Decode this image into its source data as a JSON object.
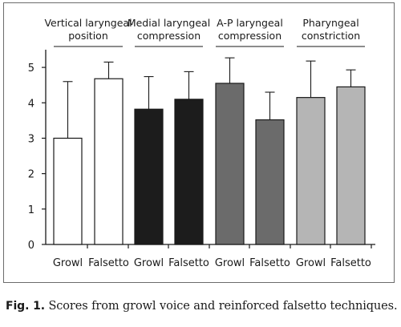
{
  "chart_data": {
    "type": "bar",
    "title": "",
    "xlabel": "",
    "ylabel": "",
    "ylim": [
      0,
      5.5
    ],
    "yticks": [
      0,
      1,
      2,
      3,
      4,
      5
    ],
    "grid": false,
    "legend": "none",
    "groups": [
      {
        "name": "Vertical laryngeal position",
        "name_lines": [
          "Vertical laryngeal",
          "position"
        ],
        "color": "#ffffff"
      },
      {
        "name": "Medial laryngeal compression",
        "name_lines": [
          "Medial laryngeal",
          "compression"
        ],
        "color": "#1c1c1c"
      },
      {
        "name": "A-P laryngeal compression",
        "name_lines": [
          "A-P laryngeal",
          "compression"
        ],
        "color": "#6b6b6b"
      },
      {
        "name": "Pharyngeal constriction",
        "name_lines": [
          "Pharyngeal",
          "constriction"
        ],
        "color": "#b5b5b5"
      }
    ],
    "bars": [
      {
        "group": 0,
        "category": "Growl",
        "value": 3.0,
        "error": 1.6
      },
      {
        "group": 0,
        "category": "Falsetto",
        "value": 4.68,
        "error": 0.47
      },
      {
        "group": 1,
        "category": "Growl",
        "value": 3.82,
        "error": 0.92
      },
      {
        "group": 1,
        "category": "Falsetto",
        "value": 4.1,
        "error": 0.78
      },
      {
        "group": 2,
        "category": "Growl",
        "value": 4.55,
        "error": 0.72
      },
      {
        "group": 2,
        "category": "Falsetto",
        "value": 3.52,
        "error": 0.78
      },
      {
        "group": 3,
        "category": "Growl",
        "value": 4.15,
        "error": 1.03
      },
      {
        "group": 3,
        "category": "Falsetto",
        "value": 4.45,
        "error": 0.48
      }
    ]
  },
  "caption": {
    "label": "Fig. 1.",
    "text": " Scores from growl voice and reinforced falsetto techniques."
  }
}
